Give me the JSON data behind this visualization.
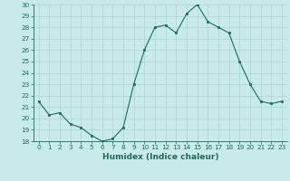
{
  "x": [
    0,
    1,
    2,
    3,
    4,
    5,
    6,
    7,
    8,
    9,
    10,
    11,
    12,
    13,
    14,
    15,
    16,
    17,
    18,
    19,
    20,
    21,
    22,
    23
  ],
  "y": [
    21.5,
    20.3,
    20.5,
    19.5,
    19.2,
    18.5,
    18.0,
    18.2,
    19.2,
    23.0,
    26.0,
    28.0,
    28.2,
    27.5,
    29.2,
    30.0,
    28.5,
    28.0,
    27.5,
    25.0,
    23.0,
    21.5,
    21.3,
    21.5
  ],
  "title": "",
  "xlabel": "Humidex (Indice chaleur)",
  "ylabel": "",
  "xlim": [
    -0.5,
    23.5
  ],
  "ylim": [
    18,
    30
  ],
  "yticks": [
    18,
    19,
    20,
    21,
    22,
    23,
    24,
    25,
    26,
    27,
    28,
    29,
    30
  ],
  "xticks": [
    0,
    1,
    2,
    3,
    4,
    5,
    6,
    7,
    8,
    9,
    10,
    11,
    12,
    13,
    14,
    15,
    16,
    17,
    18,
    19,
    20,
    21,
    22,
    23
  ],
  "line_color": "#1a6b5a",
  "marker_color": "#1a6b5a",
  "bg_color": "#c8eaea",
  "grid_color": "#b0d8d8",
  "tick_label_fontsize": 5.2,
  "xlabel_fontsize": 6.5
}
